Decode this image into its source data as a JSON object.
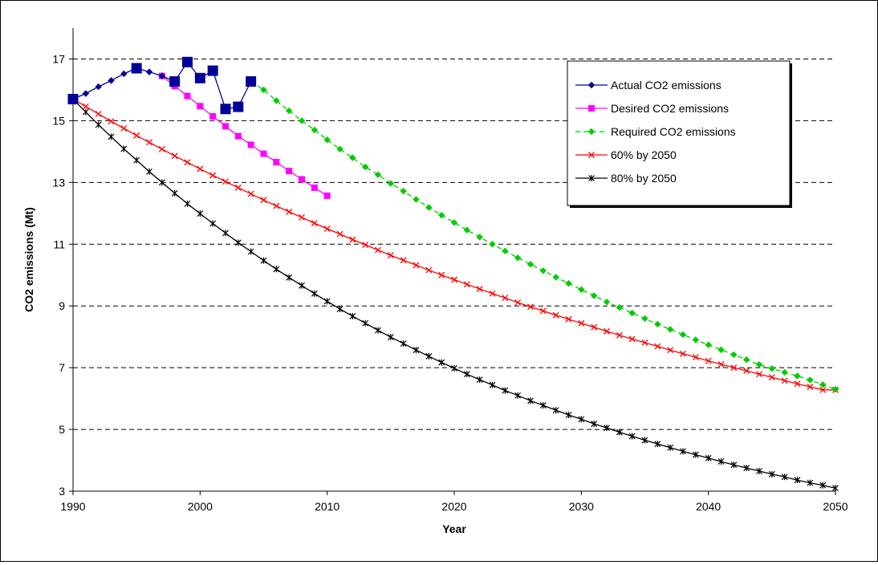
{
  "chart_data": {
    "type": "line",
    "title": "",
    "xlabel": "Year",
    "ylabel": "CO2 emissions (Mt)",
    "xlim": [
      1990,
      2050
    ],
    "ylim": [
      3,
      18
    ],
    "x_ticks": [
      1990,
      2000,
      2010,
      2020,
      2030,
      2040,
      2050
    ],
    "y_ticks": [
      3,
      5,
      7,
      9,
      11,
      13,
      15,
      17
    ],
    "grid": "horizontal dashed",
    "legend_position": "top-right",
    "series": [
      {
        "name": "Actual CO2 emissions",
        "color": "#000099",
        "marker": "diamond",
        "dash": "solid",
        "x": [
          1990,
          1991,
          1992,
          1993,
          1994,
          1995,
          1996,
          1997,
          1998,
          1999,
          2000,
          2001,
          2002,
          2003,
          2004
        ],
        "y": [
          15.7,
          15.88,
          16.1,
          16.3,
          16.52,
          16.7,
          16.58,
          16.45,
          16.27,
          16.9,
          16.38,
          16.62,
          15.38,
          15.45,
          16.27
        ]
      },
      {
        "name": "Desired CO2 emissions",
        "color": "#ff00ff",
        "marker": "square",
        "dash": "solid",
        "x": [
          1997,
          1998,
          1999,
          2000,
          2001,
          2002,
          2003,
          2004,
          2005,
          2006,
          2007,
          2008,
          2009,
          2010
        ],
        "y": [
          16.45,
          16.12,
          15.8,
          15.47,
          15.14,
          14.82,
          14.5,
          14.22,
          13.93,
          13.66,
          13.37,
          13.1,
          12.83,
          12.57
        ]
      },
      {
        "name": "Required CO2 emissions",
        "color": "#00cc00",
        "marker": "diamond",
        "dash": "dashed",
        "x": [
          2004,
          2005,
          2006,
          2007,
          2008,
          2009,
          2010,
          2011,
          2012,
          2013,
          2014,
          2015,
          2016,
          2017,
          2018,
          2019,
          2020,
          2021,
          2022,
          2023,
          2024,
          2025,
          2026,
          2027,
          2028,
          2029,
          2030,
          2031,
          2032,
          2033,
          2034,
          2035,
          2036,
          2037,
          2038,
          2039,
          2040,
          2041,
          2042,
          2043,
          2044,
          2045,
          2046,
          2047,
          2048,
          2049,
          2050
        ],
        "y": [
          16.27,
          16.0,
          15.65,
          15.32,
          15.0,
          14.7,
          14.38,
          14.08,
          13.8,
          13.5,
          13.25,
          12.97,
          12.72,
          12.45,
          12.19,
          11.94,
          11.7,
          11.46,
          11.23,
          11.0,
          10.78,
          10.56,
          10.35,
          10.14,
          9.93,
          9.73,
          9.53,
          9.33,
          9.13,
          8.95,
          8.77,
          8.59,
          8.41,
          8.24,
          8.07,
          7.9,
          7.74,
          7.58,
          7.42,
          7.26,
          7.1,
          6.97,
          6.85,
          6.73,
          6.6,
          6.45,
          6.3
        ]
      },
      {
        "name": "60% by 2050",
        "color": "#ff0000",
        "marker": "x",
        "dash": "solid",
        "x": [
          1990,
          1991,
          1992,
          1993,
          1994,
          1995,
          1996,
          1997,
          1998,
          1999,
          2000,
          2001,
          2002,
          2003,
          2004,
          2005,
          2006,
          2007,
          2008,
          2009,
          2010,
          2011,
          2012,
          2013,
          2014,
          2015,
          2016,
          2017,
          2018,
          2019,
          2020,
          2021,
          2022,
          2023,
          2024,
          2025,
          2026,
          2027,
          2028,
          2029,
          2030,
          2031,
          2032,
          2033,
          2034,
          2035,
          2036,
          2037,
          2038,
          2039,
          2040,
          2041,
          2042,
          2043,
          2044,
          2045,
          2046,
          2047,
          2048,
          2049,
          2050
        ],
        "y": [
          15.7,
          15.46,
          15.22,
          14.98,
          14.75,
          14.52,
          14.3,
          14.08,
          13.86,
          13.65,
          13.44,
          13.23,
          13.03,
          12.83,
          12.63,
          12.43,
          12.24,
          12.05,
          11.87,
          11.68,
          11.5,
          11.33,
          11.15,
          10.98,
          10.81,
          10.64,
          10.48,
          10.32,
          10.16,
          10.0,
          9.85,
          9.7,
          9.55,
          9.4,
          9.26,
          9.11,
          8.97,
          8.84,
          8.7,
          8.57,
          8.44,
          8.31,
          8.18,
          8.05,
          7.93,
          7.81,
          7.69,
          7.57,
          7.45,
          7.34,
          7.22,
          7.11,
          7.0,
          6.9,
          6.79,
          6.69,
          6.58,
          6.48,
          6.38,
          6.28,
          6.28
        ]
      },
      {
        "name": "80% by 2050",
        "color": "#000000",
        "marker": "asterisk",
        "dash": "solid",
        "x": [
          1990,
          1991,
          1992,
          1993,
          1994,
          1995,
          1996,
          1997,
          1998,
          1999,
          2000,
          2001,
          2002,
          2003,
          2004,
          2005,
          2006,
          2007,
          2008,
          2009,
          2010,
          2011,
          2012,
          2013,
          2014,
          2015,
          2016,
          2017,
          2018,
          2019,
          2020,
          2021,
          2022,
          2023,
          2024,
          2025,
          2026,
          2027,
          2028,
          2029,
          2030,
          2031,
          2032,
          2033,
          2034,
          2035,
          2036,
          2037,
          2038,
          2039,
          2040,
          2041,
          2042,
          2043,
          2044,
          2045,
          2046,
          2047,
          2048,
          2049,
          2050
        ],
        "y": [
          15.7,
          15.28,
          14.87,
          14.48,
          14.09,
          13.72,
          13.35,
          13.0,
          12.65,
          12.31,
          11.99,
          11.67,
          11.36,
          11.05,
          10.76,
          10.47,
          10.19,
          9.92,
          9.66,
          9.4,
          9.15,
          8.9,
          8.67,
          8.44,
          8.21,
          7.99,
          7.78,
          7.57,
          7.37,
          7.17,
          6.98,
          6.79,
          6.61,
          6.44,
          6.26,
          6.1,
          5.93,
          5.78,
          5.62,
          5.47,
          5.33,
          5.18,
          5.05,
          4.91,
          4.78,
          4.65,
          4.53,
          4.41,
          4.29,
          4.18,
          4.07,
          3.96,
          3.85,
          3.75,
          3.65,
          3.55,
          3.46,
          3.36,
          3.27,
          3.19,
          3.1
        ]
      }
    ]
  }
}
